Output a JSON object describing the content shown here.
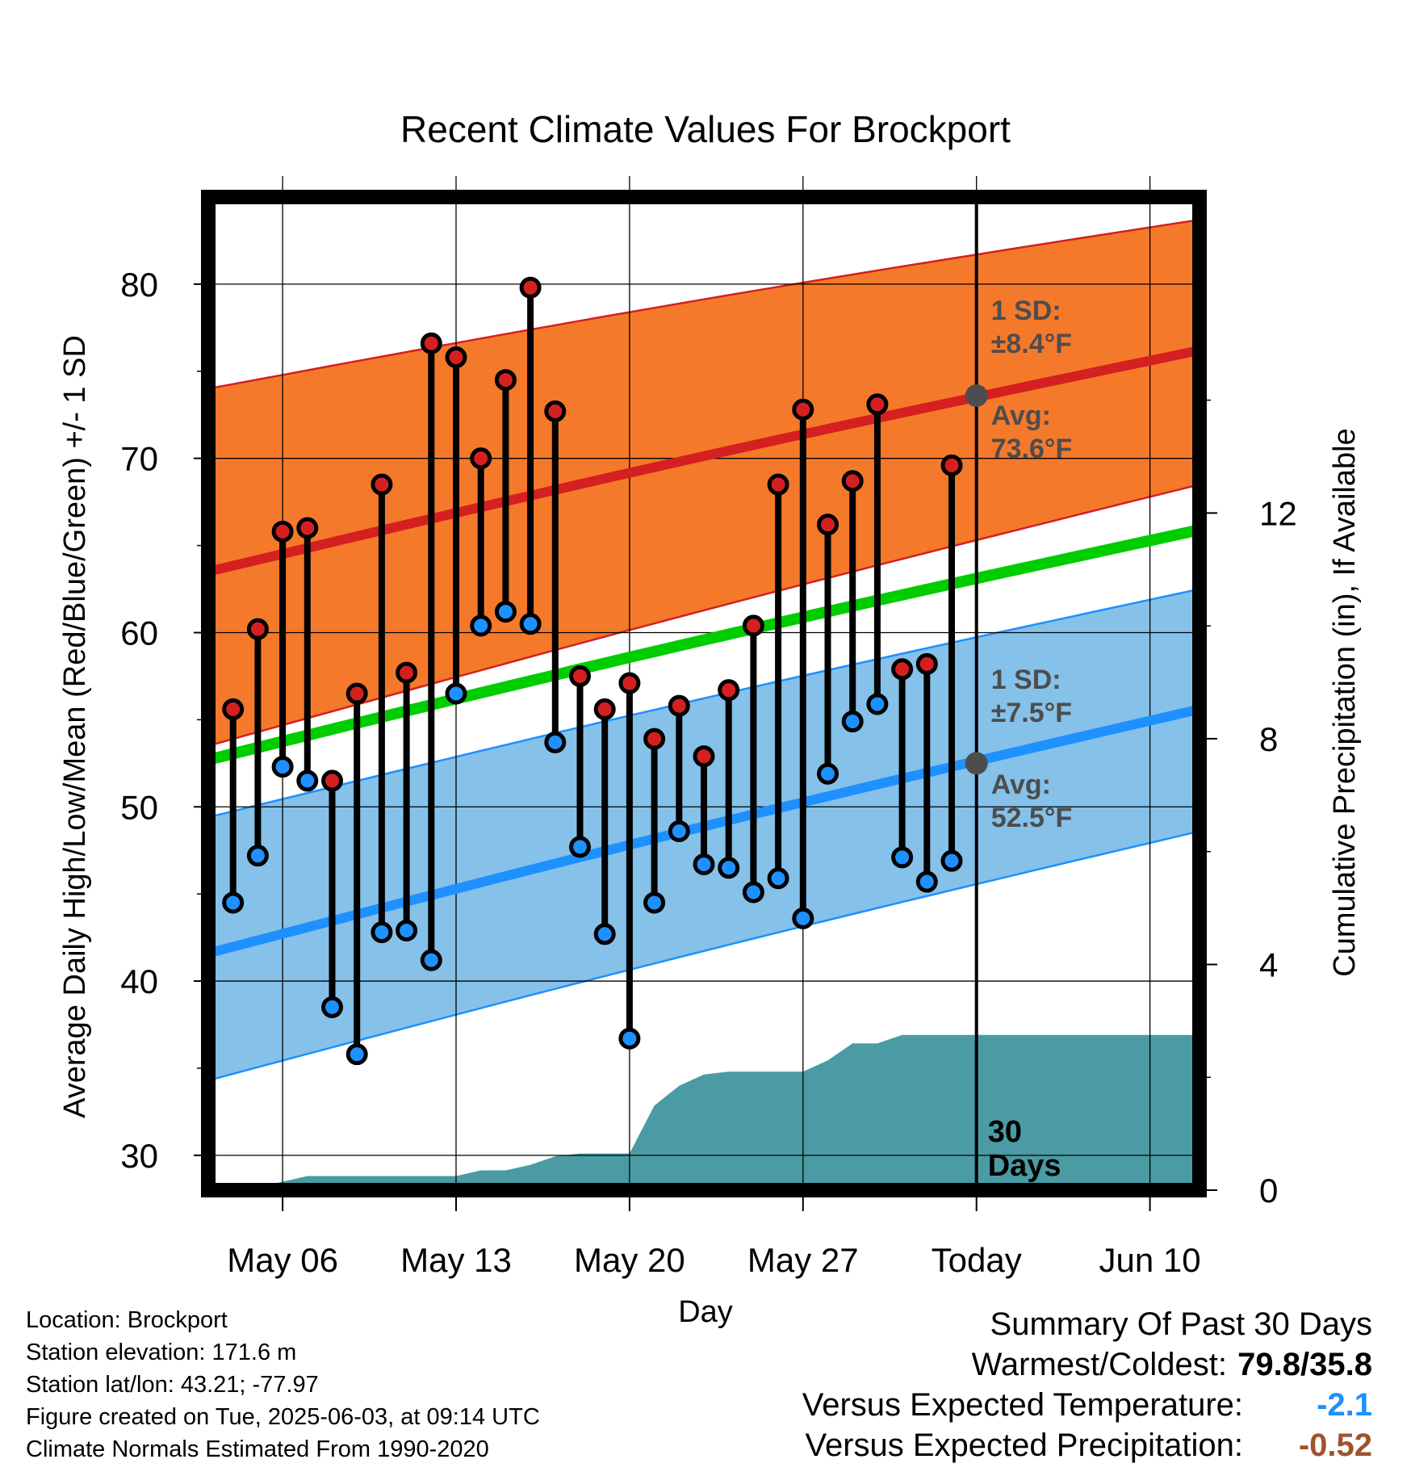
{
  "chart_data": {
    "type": "line",
    "title": "Recent Climate Values For Brockport",
    "xlabel": "Day",
    "ylabel": "Average Daily High/Low/Mean (Red/Blue/Green) +/- 1 SD",
    "y2label": "Cumulative Precipitation (in), If Available",
    "x_tick_labels": [
      "May 06",
      "May 13",
      "May 20",
      "May 27",
      "Today",
      "Jun 10"
    ],
    "x_tick_dates": [
      "2025-05-06",
      "2025-05-13",
      "2025-05-20",
      "2025-05-27",
      "2025-06-03",
      "2025-06-10"
    ],
    "x_range": [
      "2025-05-03",
      "2025-06-12"
    ],
    "today": "2025-06-03",
    "ylim": [
      28,
      85
    ],
    "y_ticks": [
      30,
      40,
      50,
      60,
      70,
      80
    ],
    "y2lim": [
      0,
      17.6
    ],
    "y2_ticks": [
      0,
      4,
      8,
      12
    ],
    "grid": true,
    "colors": {
      "high": "#d42020",
      "low": "#1e90ff",
      "mean": "#00cc00",
      "high_band": "#f5792a",
      "low_band": "#85c1e9",
      "precip": "#4a9ba4",
      "annotation": "#4d4d4d"
    },
    "normals": {
      "high_avg": {
        "start": 63.5,
        "end": 76.2
      },
      "high_band_upper": {
        "start": 74.0,
        "end": 83.7
      },
      "high_band_lower": {
        "start": 53.5,
        "end": 68.5
      },
      "mean_avg": {
        "start": 52.7,
        "end": 65.9
      },
      "low_avg": {
        "start": 41.6,
        "end": 55.6
      },
      "low_band_upper": {
        "start": 49.4,
        "end": 62.5
      },
      "low_band_lower": {
        "start": 34.3,
        "end": 48.6
      }
    },
    "daily": {
      "dates": [
        "2025-05-04",
        "2025-05-05",
        "2025-05-06",
        "2025-05-07",
        "2025-05-08",
        "2025-05-09",
        "2025-05-10",
        "2025-05-11",
        "2025-05-12",
        "2025-05-13",
        "2025-05-14",
        "2025-05-15",
        "2025-05-16",
        "2025-05-17",
        "2025-05-18",
        "2025-05-19",
        "2025-05-20",
        "2025-05-21",
        "2025-05-22",
        "2025-05-23",
        "2025-05-24",
        "2025-05-25",
        "2025-05-26",
        "2025-05-27",
        "2025-05-28",
        "2025-05-29",
        "2025-05-30",
        "2025-05-31",
        "2025-06-01",
        "2025-06-02"
      ],
      "high": [
        55.6,
        60.2,
        65.8,
        66.0,
        51.5,
        56.5,
        68.5,
        57.7,
        76.6,
        75.8,
        70.0,
        74.5,
        79.8,
        72.7,
        57.5,
        55.6,
        57.1,
        53.9,
        55.8,
        52.9,
        56.7,
        60.4,
        68.5,
        72.8,
        66.2,
        68.7,
        73.1,
        57.9,
        58.2,
        69.6
      ],
      "low": [
        44.5,
        47.2,
        52.3,
        51.5,
        38.5,
        35.8,
        42.8,
        42.9,
        41.2,
        56.5,
        60.4,
        61.2,
        60.5,
        53.7,
        47.7,
        42.7,
        36.7,
        44.5,
        48.6,
        46.7,
        46.5,
        45.1,
        45.9,
        43.6,
        51.9,
        54.9,
        55.9,
        47.1,
        45.7,
        46.9
      ]
    },
    "precip": {
      "dates": [
        "2025-05-04",
        "2025-05-05",
        "2025-05-06",
        "2025-05-07",
        "2025-05-08",
        "2025-05-09",
        "2025-05-10",
        "2025-05-11",
        "2025-05-12",
        "2025-05-13",
        "2025-05-14",
        "2025-05-15",
        "2025-05-16",
        "2025-05-17",
        "2025-05-18",
        "2025-05-19",
        "2025-05-20",
        "2025-05-21",
        "2025-05-22",
        "2025-05-23",
        "2025-05-24",
        "2025-05-25",
        "2025-05-26",
        "2025-05-27",
        "2025-05-28",
        "2025-05-29",
        "2025-05-30",
        "2025-05-31",
        "2025-06-01",
        "2025-06-02",
        "2025-06-03",
        "2025-06-12"
      ],
      "cumulative": [
        0.0,
        0.05,
        0.15,
        0.25,
        0.25,
        0.25,
        0.25,
        0.25,
        0.25,
        0.25,
        0.35,
        0.35,
        0.45,
        0.6,
        0.65,
        0.65,
        0.65,
        1.5,
        1.85,
        2.05,
        2.1,
        2.1,
        2.1,
        2.1,
        2.3,
        2.6,
        2.6,
        2.75,
        2.75,
        2.75,
        2.75,
        2.75
      ]
    },
    "annotations": {
      "high_sd_label": "1 SD:",
      "high_sd_value": "±8.4°F",
      "high_avg_label": "Avg:",
      "high_avg_value": "73.6°F",
      "high_avg_marker": 73.6,
      "low_sd_label": "1 SD:",
      "low_sd_value": "±7.5°F",
      "low_avg_label": "Avg:",
      "low_avg_value": "52.5°F",
      "low_avg_marker": 52.5,
      "days_label_line1": "30",
      "days_label_line2": "Days"
    }
  },
  "footer": {
    "location": "Location: Brockport",
    "elevation": "Station elevation: 171.6 m",
    "latlon": "Station lat/lon: 43.21; -77.97",
    "created": "Figure created on Tue, 2025-06-03, at 09:14 UTC",
    "normals": "Climate Normals Estimated From 1990-2020"
  },
  "summary": {
    "heading": "Summary Of Past 30 Days",
    "warmest_label": "Warmest/Coldest:",
    "warmest_value": "79.8/35.8",
    "temp_label": "Versus Expected Temperature:",
    "temp_value": "-2.1",
    "temp_color": "#1e90ff",
    "precip_label": "Versus Expected Precipitation:",
    "precip_value": "-0.52",
    "precip_color": "#a0522d"
  }
}
